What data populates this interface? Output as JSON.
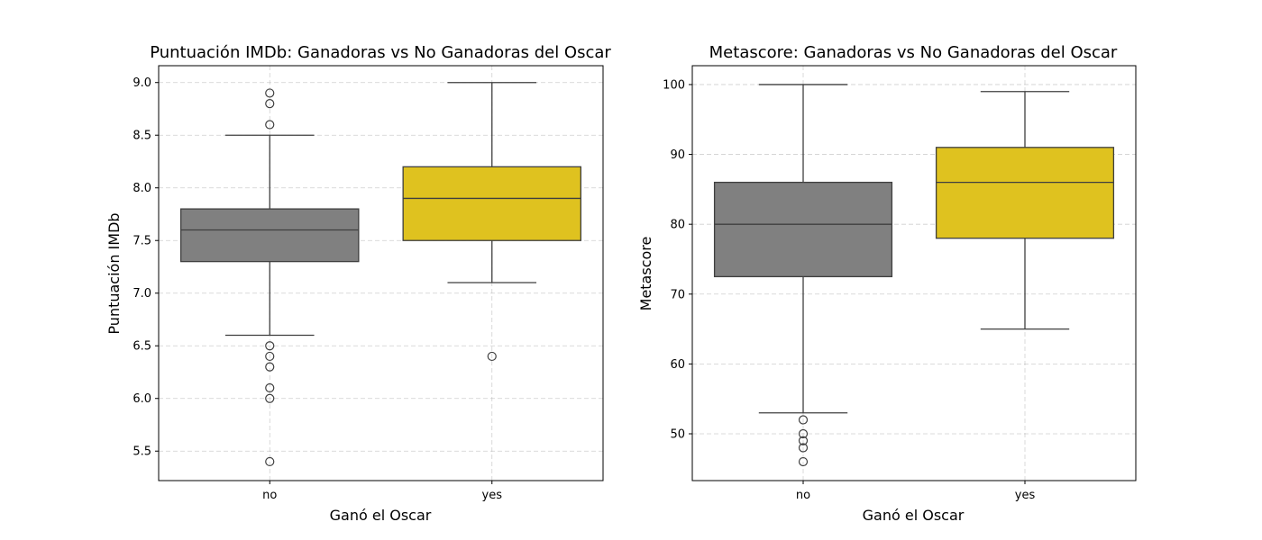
{
  "chart_data": [
    {
      "type": "box",
      "title": "Puntuación IMDb: Ganadoras vs No Ganadoras del Oscar",
      "xlabel": "Ganó el Oscar",
      "ylabel": "Puntuación IMDb",
      "ylim": [
        5.22,
        9.16
      ],
      "yticks": [
        "5.5",
        "6.0",
        "6.5",
        "7.0",
        "7.5",
        "8.0",
        "8.5",
        "9.0"
      ],
      "grid": true,
      "categories": [
        "no",
        "yes"
      ],
      "series": [
        {
          "category": "no",
          "color": "#808080",
          "whisker_low": 6.6,
          "q1": 7.3,
          "median": 7.6,
          "q3": 7.8,
          "whisker_high": 8.5,
          "outliers": [
            8.9,
            8.8,
            8.6,
            6.5,
            6.4,
            6.3,
            6.1,
            6.0,
            5.4
          ]
        },
        {
          "category": "yes",
          "color": "#dfc21f",
          "whisker_low": 7.1,
          "q1": 7.5,
          "median": 7.9,
          "q3": 8.2,
          "whisker_high": 9.0,
          "outliers": [
            6.4
          ]
        }
      ]
    },
    {
      "type": "box",
      "title": "Metascore: Ganadoras vs No Ganadoras del Oscar",
      "xlabel": "Ganó el Oscar",
      "ylabel": "Metascore",
      "ylim": [
        43.3,
        102.7
      ],
      "yticks": [
        "50",
        "60",
        "70",
        "80",
        "90",
        "100"
      ],
      "grid": true,
      "categories": [
        "no",
        "yes"
      ],
      "series": [
        {
          "category": "no",
          "color": "#808080",
          "whisker_low": 53,
          "q1": 72.5,
          "median": 80,
          "q3": 86,
          "whisker_high": 100,
          "outliers": [
            52,
            50,
            49,
            48,
            46
          ]
        },
        {
          "category": "yes",
          "color": "#dfc21f",
          "whisker_low": 65,
          "q1": 78,
          "median": 86,
          "q3": 91,
          "whisker_high": 99,
          "outliers": []
        }
      ]
    }
  ]
}
